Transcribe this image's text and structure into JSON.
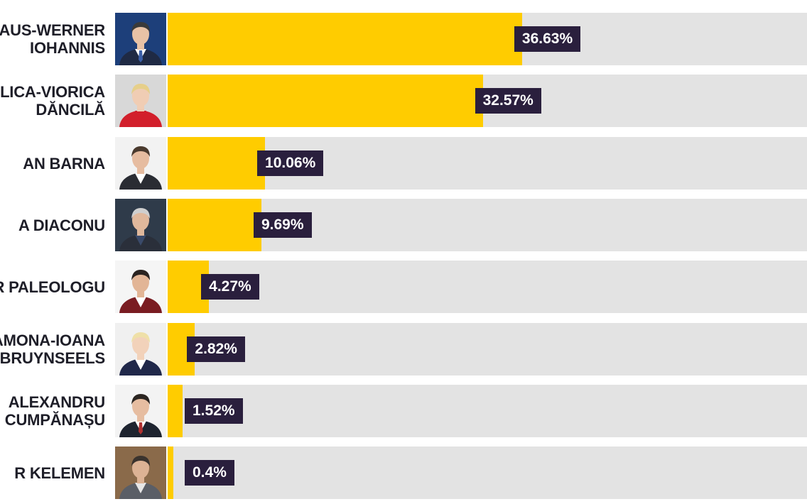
{
  "colors": {
    "bar_fill": "#ffcc00",
    "bar_track": "#e3e3e3",
    "label_bg": "#2a1f3d",
    "label_text": "#ffffff",
    "name_text": "#1e1e28"
  },
  "chart_data": {
    "type": "bar",
    "orientation": "horizontal",
    "xlim": [
      0,
      100
    ],
    "grid": false,
    "categories": [
      [
        "AUS-WERNER",
        "IOHANNIS"
      ],
      [
        "ILICA-VIORICA",
        "DĂNCILĂ"
      ],
      [
        "AN BARNA"
      ],
      [
        "A DIACONU"
      ],
      [
        "R PALEOLOGU"
      ],
      [
        "AMONA-IOANA",
        "BRUYNSEELS"
      ],
      [
        "ALEXANDRU",
        "CUMPĂNAȘU"
      ],
      [
        "R KELEMEN"
      ]
    ],
    "values": [
      36.63,
      32.57,
      10.06,
      9.69,
      4.27,
      2.82,
      1.52,
      0.4
    ],
    "value_labels": [
      "36.63%",
      "32.57%",
      "10.06%",
      "9.69%",
      "4.27%",
      "2.82%",
      "1.52%",
      "0.4%"
    ],
    "photos": [
      "candidate-photo-man-dark-suit-blue-bg",
      "candidate-photo-woman-blonde-red-top",
      "candidate-photo-man-glasses-dark-jacket",
      "candidate-photo-man-grey-hair-dark-bg",
      "candidate-photo-man-beard-red-blazer",
      "candidate-photo-woman-blonde-glasses",
      "candidate-photo-man-glasses-suit",
      "candidate-photo-man-beard-grey-jacket"
    ]
  }
}
